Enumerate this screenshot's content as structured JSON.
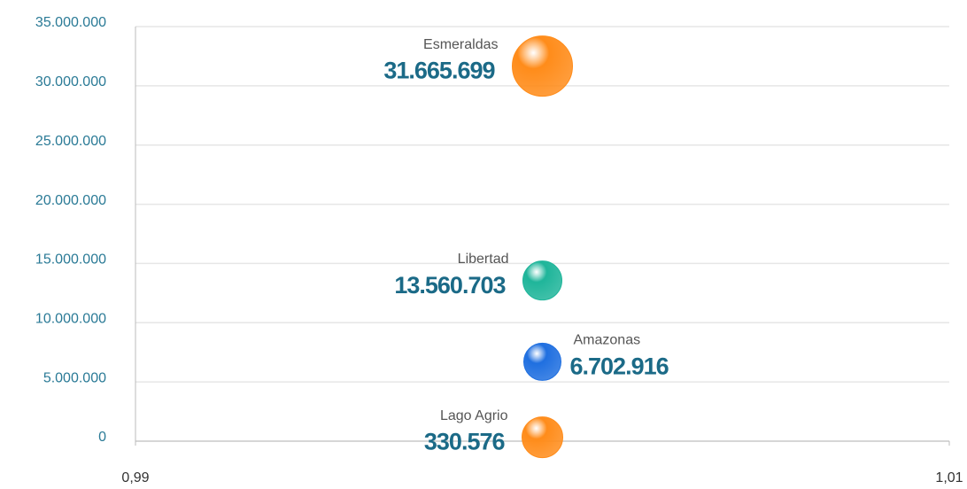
{
  "chart_data": {
    "type": "bubble",
    "series": [
      {
        "name": "Esmeraldas",
        "color": "#ff8c1a",
        "x": 1,
        "value": 31665699,
        "value_label": "31.665.699",
        "size": 34
      },
      {
        "name": "Libertad",
        "color": "#1fb59a",
        "x": 1,
        "value": 13560703,
        "value_label": "13.560.703",
        "size": 22
      },
      {
        "name": "Amazonas",
        "color": "#1f6fe0",
        "x": 1,
        "value": 6702916,
        "value_label": "6.702.916",
        "size": 21
      },
      {
        "name": "Lago Agrio",
        "color": "#ff8c1a",
        "x": 1,
        "value": 330576,
        "value_label": "330.576",
        "size": 23
      }
    ],
    "xlim": [
      0.99,
      1.01
    ],
    "xticks": [
      {
        "value": 0.99,
        "label": "0,99"
      },
      {
        "value": 1.01,
        "label": "1,01"
      }
    ],
    "ylim": [
      0,
      35000000
    ],
    "yticks": [
      0,
      {
        "value": 5000000,
        "label": "5.000.000"
      },
      {
        "value": 10000000,
        "label": "10.000.000"
      },
      {
        "value": 15000000,
        "label": "15.000.000"
      },
      {
        "value": 20000000,
        "label": "20.000.000"
      },
      {
        "value": 25000000,
        "label": "25.000.000"
      },
      {
        "value": 30000000,
        "label": "30.000.000"
      },
      {
        "value": 35000000,
        "label": "35.000.000"
      }
    ],
    "grid": true
  }
}
